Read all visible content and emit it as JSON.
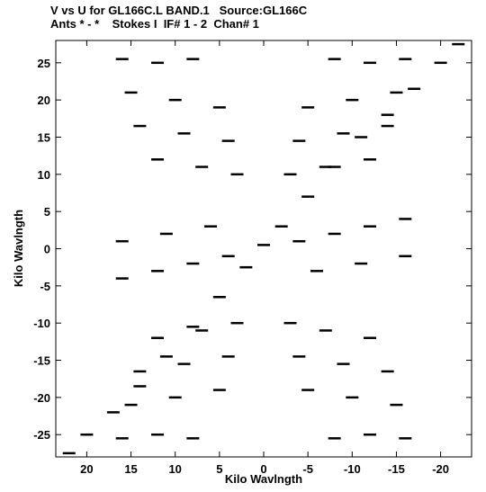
{
  "header": {
    "title_line_1": "V vs U for GL166C.L BAND.1   Source:GL166C",
    "title_line_2": "Ants * - *    Stokes I  IF# 1 - 2  Chan# 1"
  },
  "chart_data": {
    "type": "scatter",
    "title": "V vs U for GL166C.L BAND.1   Source:GL166C",
    "subtitle": "Ants * - *    Stokes I  IF# 1 - 2  Chan# 1",
    "xlabel": "Kilo Wavlngth",
    "ylabel": "Kilo Wavlngth",
    "xlim": [
      23.5,
      -23.5
    ],
    "ylim": [
      -28,
      28
    ],
    "x_reversed": true,
    "x_ticks": [
      20,
      15,
      10,
      5,
      0,
      -5,
      -10,
      -15,
      -20
    ],
    "y_ticks": [
      25,
      20,
      15,
      10,
      5,
      0,
      -5,
      -10,
      -15,
      -20,
      -25
    ],
    "grid": false,
    "marker_color": "#000000",
    "series": [
      {
        "marker": "dash",
        "points": [
          [
            -22.0,
            27.5
          ],
          [
            -20.0,
            25.0
          ],
          [
            -17.0,
            21.5
          ],
          [
            -14.0,
            18.0
          ],
          [
            -11.0,
            15.0
          ],
          [
            -8.0,
            11.0
          ],
          [
            -5.0,
            7.0
          ],
          [
            -2.0,
            3.0
          ],
          [
            0.0,
            0.5
          ],
          [
            2.0,
            -2.5
          ],
          [
            5.0,
            -6.5
          ],
          [
            8.0,
            -10.5
          ],
          [
            11.0,
            -14.5
          ],
          [
            14.0,
            -18.5
          ],
          [
            17.0,
            -22.0
          ],
          [
            20.0,
            -25.0
          ],
          [
            22.0,
            -27.5
          ],
          [
            -16.0,
            25.5
          ],
          [
            -12.0,
            25.0
          ],
          [
            -8.0,
            25.5
          ],
          [
            8.0,
            25.5
          ],
          [
            12.0,
            25.0
          ],
          [
            16.0,
            25.5
          ],
          [
            -15.0,
            21.0
          ],
          [
            -10.0,
            20.0
          ],
          [
            -5.0,
            19.0
          ],
          [
            5.0,
            19.0
          ],
          [
            10.0,
            20.0
          ],
          [
            15.0,
            21.0
          ],
          [
            -14.0,
            16.5
          ],
          [
            -9.0,
            15.5
          ],
          [
            -4.0,
            14.5
          ],
          [
            4.0,
            14.5
          ],
          [
            9.0,
            15.5
          ],
          [
            14.0,
            16.5
          ],
          [
            -12.0,
            12.0
          ],
          [
            -7.0,
            11.0
          ],
          [
            -3.0,
            10.0
          ],
          [
            3.0,
            10.0
          ],
          [
            7.0,
            11.0
          ],
          [
            12.0,
            12.0
          ],
          [
            -16.0,
            4.0
          ],
          [
            -12.0,
            3.0
          ],
          [
            -8.0,
            2.0
          ],
          [
            -4.0,
            1.0
          ],
          [
            4.0,
            -1.0
          ],
          [
            8.0,
            -2.0
          ],
          [
            12.0,
            -3.0
          ],
          [
            16.0,
            -4.0
          ],
          [
            -16.0,
            -1.0
          ],
          [
            -11.0,
            -2.0
          ],
          [
            -6.0,
            -3.0
          ],
          [
            6.0,
            3.0
          ],
          [
            11.0,
            2.0
          ],
          [
            16.0,
            1.0
          ],
          [
            -12.0,
            -12.0
          ],
          [
            -7.0,
            -11.0
          ],
          [
            -3.0,
            -10.0
          ],
          [
            3.0,
            -10.0
          ],
          [
            7.0,
            -11.0
          ],
          [
            12.0,
            -12.0
          ],
          [
            -14.0,
            -16.5
          ],
          [
            -9.0,
            -15.5
          ],
          [
            -4.0,
            -14.5
          ],
          [
            4.0,
            -14.5
          ],
          [
            9.0,
            -15.5
          ],
          [
            14.0,
            -16.5
          ],
          [
            -15.0,
            -21.0
          ],
          [
            -10.0,
            -20.0
          ],
          [
            -5.0,
            -19.0
          ],
          [
            5.0,
            -19.0
          ],
          [
            10.0,
            -20.0
          ],
          [
            15.0,
            -21.0
          ],
          [
            -16.0,
            -25.5
          ],
          [
            -12.0,
            -25.0
          ],
          [
            -8.0,
            -25.5
          ],
          [
            8.0,
            -25.5
          ],
          [
            12.0,
            -25.0
          ],
          [
            16.0,
            -25.5
          ]
        ]
      }
    ]
  }
}
